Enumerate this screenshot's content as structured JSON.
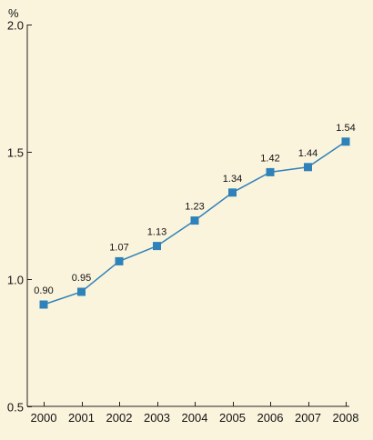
{
  "chart_data": {
    "type": "line",
    "title": "",
    "xlabel": "",
    "ylabel": "%",
    "x": [
      "2000",
      "2001",
      "2002",
      "2003",
      "2004",
      "2005",
      "2006",
      "2007",
      "2008"
    ],
    "series": [
      {
        "values": [
          0.9,
          0.95,
          1.07,
          1.13,
          1.23,
          1.34,
          1.42,
          1.44,
          1.54
        ],
        "labels": [
          "0.90",
          "0.95",
          "1.07",
          "1.13",
          "1.23",
          "1.34",
          "1.42",
          "1.44",
          "1.54"
        ]
      }
    ],
    "ylim": [
      0.5,
      2.0
    ],
    "yticks": [
      0.5,
      1.0,
      1.5,
      2.0
    ],
    "ytick_labels": [
      "0.5",
      "1.0",
      "1.5",
      "2.0"
    ],
    "grid": false,
    "colors": {
      "background": "#fbf4dd",
      "series": "#2f82b9",
      "axis": "#222222"
    }
  }
}
